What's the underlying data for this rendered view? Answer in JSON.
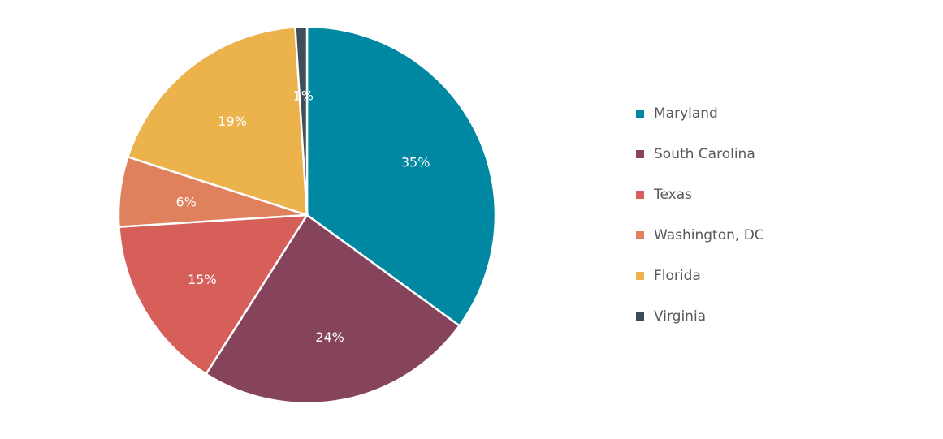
{
  "chart_data": {
    "type": "pie",
    "title": "",
    "legend_position": "right",
    "slices": [
      {
        "label": "Maryland",
        "value": 35,
        "display": "35%",
        "color": "#0088A3"
      },
      {
        "label": "South Carolina",
        "value": 24,
        "display": "24%",
        "color": "#86435C"
      },
      {
        "label": "Texas",
        "value": 15,
        "display": "15%",
        "color": "#D65F5A"
      },
      {
        "label": "Washington, DC",
        "value": 6,
        "display": "6%",
        "color": "#E0815E"
      },
      {
        "label": "Florida",
        "value": 19,
        "display": "19%",
        "color": "#ECB24B"
      },
      {
        "label": "Virginia",
        "value": 1,
        "display": "1%",
        "color": "#3E4D57"
      }
    ]
  }
}
